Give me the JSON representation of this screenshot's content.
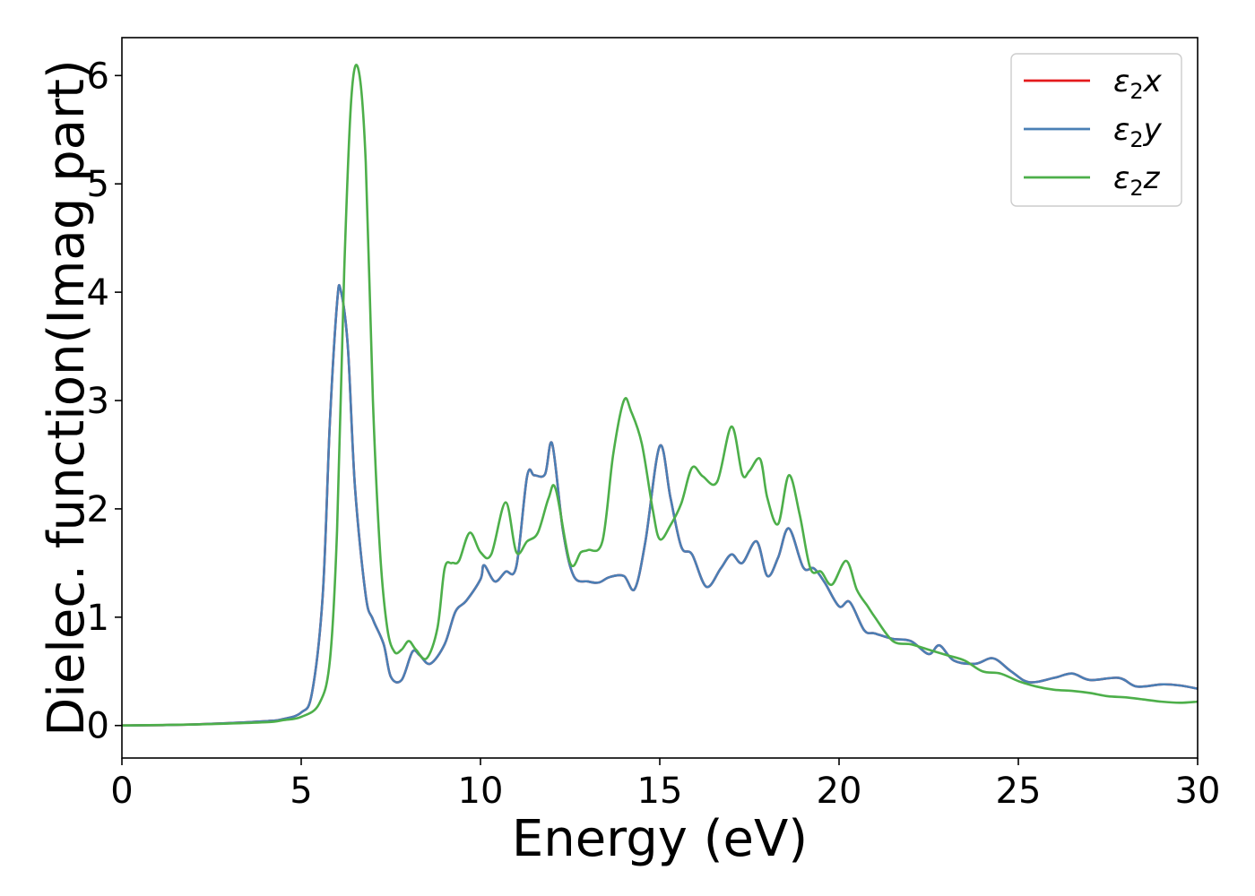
{
  "chart_data": {
    "type": "line",
    "title": "",
    "xlabel": "Energy (eV)",
    "ylabel": "Dielec. function(Imag part)",
    "xlim": [
      0,
      30
    ],
    "ylim": [
      -0.3,
      6.35
    ],
    "xticks": [
      0,
      5,
      10,
      15,
      20,
      25,
      30
    ],
    "yticks": [
      0,
      1,
      2,
      3,
      4,
      5,
      6
    ],
    "grid": false,
    "legend_position": "top-right",
    "series": [
      {
        "name": "ε2x",
        "legend_main": "ε",
        "legend_sub": "2",
        "legend_tail": "x",
        "color": "#e41a1c",
        "x": [
          0,
          2,
          4,
          4.5,
          5,
          5.3,
          5.6,
          5.8,
          6.0,
          6.1,
          6.3,
          6.5,
          6.8,
          7.0,
          7.3,
          7.5,
          7.8,
          8.1,
          8.3,
          8.6,
          9.0,
          9.3,
          9.6,
          10.0,
          10.1,
          10.4,
          10.7,
          11.0,
          11.3,
          11.5,
          11.8,
          12.0,
          12.3,
          12.6,
          13.0,
          13.3,
          13.6,
          14.0,
          14.3,
          14.6,
          15.0,
          15.3,
          15.6,
          15.9,
          16.3,
          16.7,
          17.0,
          17.3,
          17.7,
          18.0,
          18.3,
          18.6,
          19.0,
          19.3,
          19.6,
          20.0,
          20.3,
          20.7,
          21.0,
          21.5,
          22.0,
          22.5,
          22.8,
          23.2,
          23.8,
          24.3,
          24.8,
          25.3,
          26.0,
          26.5,
          27.0,
          27.8,
          28.3,
          29.0,
          29.5,
          30.0
        ],
        "values": [
          0,
          0.01,
          0.04,
          0.06,
          0.12,
          0.3,
          1.2,
          2.8,
          3.9,
          4.02,
          3.5,
          2.2,
          1.2,
          0.98,
          0.75,
          0.45,
          0.42,
          0.68,
          0.65,
          0.57,
          0.75,
          1.05,
          1.15,
          1.35,
          1.48,
          1.33,
          1.42,
          1.47,
          2.3,
          2.31,
          2.32,
          2.6,
          1.8,
          1.38,
          1.33,
          1.32,
          1.37,
          1.38,
          1.26,
          1.7,
          2.58,
          2.1,
          1.65,
          1.58,
          1.28,
          1.45,
          1.58,
          1.5,
          1.7,
          1.38,
          1.55,
          1.82,
          1.46,
          1.45,
          1.32,
          1.1,
          1.14,
          0.88,
          0.85,
          0.8,
          0.78,
          0.66,
          0.74,
          0.6,
          0.57,
          0.62,
          0.5,
          0.4,
          0.44,
          0.48,
          0.42,
          0.44,
          0.36,
          0.38,
          0.37,
          0.34
        ]
      },
      {
        "name": "ε2y",
        "legend_main": "ε",
        "legend_sub": "2",
        "legend_tail": "y",
        "color": "#4a7fb5",
        "x": [
          0,
          2,
          4,
          4.5,
          5,
          5.3,
          5.6,
          5.8,
          6.0,
          6.1,
          6.3,
          6.5,
          6.8,
          7.0,
          7.3,
          7.5,
          7.8,
          8.1,
          8.3,
          8.6,
          9.0,
          9.3,
          9.6,
          10.0,
          10.1,
          10.4,
          10.7,
          11.0,
          11.3,
          11.5,
          11.8,
          12.0,
          12.3,
          12.6,
          13.0,
          13.3,
          13.6,
          14.0,
          14.3,
          14.6,
          15.0,
          15.3,
          15.6,
          15.9,
          16.3,
          16.7,
          17.0,
          17.3,
          17.7,
          18.0,
          18.3,
          18.6,
          19.0,
          19.3,
          19.6,
          20.0,
          20.3,
          20.7,
          21.0,
          21.5,
          22.0,
          22.5,
          22.8,
          23.2,
          23.8,
          24.3,
          24.8,
          25.3,
          26.0,
          26.5,
          27.0,
          27.8,
          28.3,
          29.0,
          29.5,
          30.0
        ],
        "values": [
          0,
          0.01,
          0.04,
          0.06,
          0.12,
          0.3,
          1.2,
          2.8,
          3.9,
          4.02,
          3.5,
          2.2,
          1.2,
          0.98,
          0.75,
          0.45,
          0.42,
          0.68,
          0.65,
          0.57,
          0.75,
          1.05,
          1.15,
          1.35,
          1.48,
          1.33,
          1.42,
          1.47,
          2.3,
          2.31,
          2.32,
          2.6,
          1.8,
          1.38,
          1.33,
          1.32,
          1.37,
          1.38,
          1.26,
          1.7,
          2.58,
          2.1,
          1.65,
          1.58,
          1.28,
          1.45,
          1.58,
          1.5,
          1.7,
          1.38,
          1.55,
          1.82,
          1.46,
          1.45,
          1.32,
          1.1,
          1.14,
          0.88,
          0.85,
          0.8,
          0.78,
          0.66,
          0.74,
          0.6,
          0.57,
          0.62,
          0.5,
          0.4,
          0.44,
          0.48,
          0.42,
          0.44,
          0.36,
          0.38,
          0.37,
          0.34
        ]
      },
      {
        "name": "ε2z",
        "legend_main": "ε",
        "legend_sub": "2",
        "legend_tail": "z",
        "color": "#4daf4a",
        "x": [
          0,
          2,
          4,
          4.5,
          5,
          5.5,
          5.8,
          6.0,
          6.2,
          6.4,
          6.6,
          6.8,
          7.0,
          7.2,
          7.4,
          7.6,
          7.8,
          8.0,
          8.2,
          8.5,
          8.8,
          9.0,
          9.2,
          9.4,
          9.7,
          10.0,
          10.3,
          10.7,
          11.0,
          11.3,
          11.6,
          11.9,
          12.1,
          12.5,
          12.8,
          13.0,
          13.4,
          13.7,
          14.0,
          14.2,
          14.5,
          14.8,
          15.0,
          15.3,
          15.6,
          15.9,
          16.2,
          16.6,
          17.0,
          17.3,
          17.5,
          17.8,
          18.0,
          18.3,
          18.6,
          18.9,
          19.2,
          19.5,
          19.8,
          20.2,
          20.5,
          20.8,
          21.0,
          21.5,
          22.0,
          22.5,
          23.0,
          23.5,
          24.0,
          24.5,
          25.0,
          25.5,
          26.0,
          26.5,
          27.0,
          27.5,
          28.0,
          28.5,
          29.0,
          29.5,
          30.0
        ],
        "values": [
          0,
          0.01,
          0.03,
          0.05,
          0.08,
          0.2,
          0.6,
          1.8,
          4.2,
          5.8,
          6.05,
          5.2,
          3.0,
          1.6,
          0.9,
          0.68,
          0.7,
          0.78,
          0.7,
          0.62,
          0.9,
          1.45,
          1.5,
          1.52,
          1.78,
          1.6,
          1.58,
          2.06,
          1.6,
          1.7,
          1.78,
          2.1,
          2.18,
          1.5,
          1.6,
          1.62,
          1.7,
          2.5,
          3.0,
          2.9,
          2.6,
          2.0,
          1.72,
          1.85,
          2.05,
          2.38,
          2.3,
          2.25,
          2.76,
          2.32,
          2.35,
          2.46,
          2.1,
          1.86,
          2.31,
          1.95,
          1.45,
          1.42,
          1.3,
          1.52,
          1.25,
          1.1,
          1.0,
          0.78,
          0.75,
          0.7,
          0.65,
          0.6,
          0.5,
          0.48,
          0.41,
          0.36,
          0.33,
          0.32,
          0.3,
          0.27,
          0.26,
          0.24,
          0.22,
          0.21,
          0.22
        ]
      }
    ]
  }
}
